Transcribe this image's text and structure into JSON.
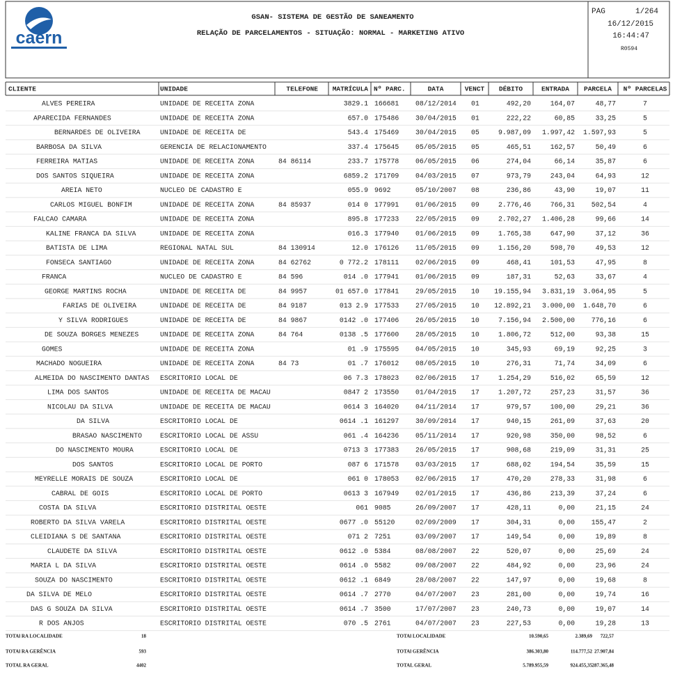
{
  "header": {
    "logo": "caern",
    "system": "GSAN- SISTEMA DE GESTÃO DE SANEAMENTO",
    "report": "RELAÇÃO DE PARCELAMENTOS - SITUAÇÃO: NORMAL - MARKETING ATIVO",
    "page_label": "PAG",
    "page": "1/264",
    "date": "16/12/2015",
    "time": "16:44:47",
    "code": "R0594"
  },
  "table": {
    "columns": [
      "CLIENTE",
      "UNIDADE",
      "TELEFONE",
      "MATRÍCULA",
      "Nº PARC.",
      "DATA",
      "VENCT",
      "DÉBITO",
      "ENTRADA",
      "PARCELA",
      "Nº PARCELAS"
    ],
    "rows": [
      [
        "ALVES PEREIRA",
        "UNIDADE DE RECEITA ZONA",
        null,
        "3829.1",
        "166681",
        "08/12/2014",
        "01",
        "492,20",
        "164,07",
        "48,77",
        "7"
      ],
      [
        "APARECIDA FERNANDES",
        "UNIDADE DE RECEITA ZONA",
        null,
        "657.0",
        "175486",
        "30/04/2015",
        "01",
        "222,22",
        "60,85",
        "33,25",
        "5"
      ],
      [
        "BERNARDES DE OLIVEIRA",
        "UNIDADE DE RECEITA DE",
        null,
        "543.4",
        "175469",
        "30/04/2015",
        "05",
        "9.987,09",
        "1.997,42",
        "1.597,93",
        "5"
      ],
      [
        "BARBOSA DA SILVA",
        "GERENCIA DE RELACIONAMENTO",
        null,
        "337.4",
        "175645",
        "05/05/2015",
        "05",
        "465,51",
        "162,57",
        "50,49",
        "6"
      ],
      [
        "FERREIRA MATIAS",
        "UNIDADE DE RECEITA ZONA",
        "84    86114",
        "233.7",
        "175778",
        "06/05/2015",
        "06",
        "274,04",
        "66,14",
        "35,87",
        "6"
      ],
      [
        "DOS SANTOS SIQUEIRA",
        "UNIDADE DE RECEITA ZONA",
        null,
        "6859.2",
        "171709",
        "04/03/2015",
        "07",
        "973,79",
        "243,04",
        "64,93",
        "12"
      ],
      [
        "AREIA NETO",
        "NUCLEO DE CADASTRO E",
        null,
        "055.9",
        "9692",
        "05/10/2007",
        "08",
        "236,86",
        "43,90",
        "19,07",
        "11"
      ],
      [
        "CARLOS MIGUEL BONFIM",
        "UNIDADE DE RECEITA ZONA",
        "84    85937",
        "014    0",
        "177991",
        "01/06/2015",
        "09",
        "2.776,46",
        "766,31",
        "502,54",
        "4"
      ],
      [
        "FALCAO CAMARA",
        "UNIDADE DE RECEITA ZONA",
        null,
        "895.8",
        "177233",
        "22/05/2015",
        "09",
        "2.702,27",
        "1.406,28",
        "99,66",
        "14"
      ],
      [
        "KALINE FRANCA DA SILVA",
        "UNIDADE DE RECEITA ZONA",
        null,
        "016.3",
        "177940",
        "01/06/2015",
        "09",
        "1.765,38",
        "647,90",
        "37,12",
        "36"
      ],
      [
        "BATISTA DE LIMA",
        "REGIONAL NATAL SUL",
        "84  130914",
        "12.0",
        "176126",
        "11/05/2015",
        "09",
        "1.156,20",
        "598,70",
        "49,53",
        "12"
      ],
      [
        "FONSECA SANTIAGO",
        "UNIDADE DE RECEITA ZONA",
        "84   62762",
        "0   772.2",
        "178111",
        "02/06/2015",
        "09",
        "468,41",
        "101,53",
        "47,95",
        "8"
      ],
      [
        "FRANCA",
        "NUCLEO DE CADASTRO E",
        "84    596",
        "014    .0",
        "177941",
        "01/06/2015",
        "09",
        "187,31",
        "52,63",
        "33,67",
        "4"
      ],
      [
        "GEORGE MARTINS ROCHA",
        "UNIDADE DE RECEITA DE",
        "84    9957",
        "01  657.0",
        "177841",
        "29/05/2015",
        "10",
        "19.155,94",
        "3.831,19",
        "3.064,95",
        "5"
      ],
      [
        "FARIAS DE OLIVEIRA",
        "UNIDADE DE RECEITA DE",
        "84    9187",
        "013   2.9",
        "177533",
        "27/05/2015",
        "10",
        "12.892,21",
        "3.000,00",
        "1.648,70",
        "6"
      ],
      [
        "Y SILVA RODRIGUES",
        "UNIDADE DE RECEITA DE",
        "84    9867",
        "0142   .0",
        "177406",
        "26/05/2015",
        "10",
        "7.156,94",
        "2.500,00",
        "776,16",
        "6"
      ],
      [
        "DE SOUZA BORGES MENEZES",
        "UNIDADE DE RECEITA ZONA",
        "84     764",
        "0138   .5",
        "177600",
        "28/05/2015",
        "10",
        "1.806,72",
        "512,00",
        "93,38",
        "15"
      ],
      [
        "GOMES",
        "UNIDADE DE RECEITA ZONA",
        null,
        "01     .9",
        "175595",
        "04/05/2015",
        "10",
        "345,93",
        "69,19",
        "92,25",
        "3"
      ],
      [
        "MACHADO NOGUEIRA",
        "UNIDADE DE RECEITA ZONA",
        "84      73",
        "01     .7",
        "176012",
        "08/05/2015",
        "10",
        "276,31",
        "71,74",
        "34,09",
        "6"
      ],
      [
        "ALMEIDA DO NASCIMENTO DANTAS",
        "ESCRITORIO LOCAL DE",
        null,
        "06    7.3",
        "178023",
        "02/06/2015",
        "17",
        "1.254,29",
        "516,02",
        "65,59",
        "12"
      ],
      [
        "LIMA DOS SANTOS",
        "UNIDADE DE RECEITA DE MACAU",
        null,
        "0847    2",
        "173550",
        "01/04/2015",
        "17",
        "1.207,72",
        "257,23",
        "31,57",
        "36"
      ],
      [
        "NICOLAU DA SILVA",
        "UNIDADE DE RECEITA DE MACAU",
        null,
        "0614    3",
        "164020",
        "04/11/2014",
        "17",
        "979,57",
        "100,00",
        "29,21",
        "36"
      ],
      [
        "DA SILVA",
        "ESCRITORIO LOCAL DE",
        null,
        "0614   .1",
        "161297",
        "30/09/2014",
        "17",
        "940,15",
        "261,09",
        "37,63",
        "20"
      ],
      [
        "BRASAO NASCIMENTO",
        "ESCRITORIO LOCAL DE ASSU",
        null,
        "061    .4",
        "164236",
        "05/11/2014",
        "17",
        "920,98",
        "350,00",
        "98,52",
        "6"
      ],
      [
        "DO NASCIMENTO MOURA",
        "ESCRITORIO LOCAL DE",
        null,
        "0713    3",
        "177383",
        "26/05/2015",
        "17",
        "908,68",
        "219,09",
        "31,31",
        "25"
      ],
      [
        "DOS SANTOS",
        "ESCRITORIO LOCAL DE PORTO",
        null,
        "087     6",
        "171578",
        "03/03/2015",
        "17",
        "688,02",
        "194,54",
        "35,59",
        "15"
      ],
      [
        "MEYRELLE MORAIS DE SOUZA",
        "ESCRITORIO LOCAL DE",
        null,
        "061     0",
        "178053",
        "02/06/2015",
        "17",
        "470,20",
        "278,33",
        "31,98",
        "6"
      ],
      [
        "CABRAL DE GOIS",
        "ESCRITORIO LOCAL DE PORTO",
        null,
        "0613    3",
        "167949",
        "02/01/2015",
        "17",
        "436,86",
        "213,39",
        "37,24",
        "6"
      ],
      [
        "COSTA DA SILVA",
        "ESCRITORIO DISTRITAL OESTE",
        null,
        "061",
        "9085",
        "26/09/2007",
        "17",
        "428,11",
        "0,00",
        "21,15",
        "24"
      ],
      [
        "ROBERTO DA SILVA VARELA",
        "ESCRITORIO DISTRITAL OESTE",
        null,
        "0677   .0",
        "55120",
        "02/09/2009",
        "17",
        "304,31",
        "0,00",
        "155,47",
        "2"
      ],
      [
        "CLEIDIANA S DE SANTANA",
        "ESCRITORIO DISTRITAL OESTE",
        null,
        "071     2",
        "7251",
        "03/09/2007",
        "17",
        "149,54",
        "0,00",
        "19,89",
        "8"
      ],
      [
        "CLAUDETE DA SILVA",
        "ESCRITORIO DISTRITAL OESTE",
        null,
        "0612   .0",
        "5384",
        "08/08/2007",
        "22",
        "520,07",
        "0,00",
        "25,69",
        "24"
      ],
      [
        "MARIA L DA SILVA",
        "ESCRITORIO DISTRITAL OESTE",
        null,
        "0614   .0",
        "5582",
        "09/08/2007",
        "22",
        "484,92",
        "0,00",
        "23,96",
        "24"
      ],
      [
        "SOUZA DO NASCIMENTO",
        "ESCRITORIO DISTRITAL OESTE",
        null,
        "0612   .1",
        "6849",
        "28/08/2007",
        "22",
        "147,97",
        "0,00",
        "19,68",
        "8"
      ],
      [
        "DA SILVA DE MELO",
        "ESCRITORIO DISTRITAL OESTE",
        null,
        "0614   .7",
        "2770",
        "04/07/2007",
        "23",
        "281,00",
        "0,00",
        "19,74",
        "16"
      ],
      [
        "DAS G SOUZA DA SILVA",
        "ESCRITORIO DISTRITAL OESTE",
        null,
        "0614   .7",
        "3500",
        "17/07/2007",
        "23",
        "240,73",
        "0,00",
        "19,07",
        "14"
      ],
      [
        "R DOS ANJOS",
        "ESCRITORIO DISTRITAL OESTE",
        null,
        "070    .5",
        "2761",
        "04/07/2007",
        "23",
        "227,53",
        "0,00",
        "19,28",
        "13"
      ]
    ]
  },
  "totals": [
    {
      "label": "TOTAl RA LOCALIDADE",
      "count": "18",
      "label2": "TOTAl LOCALIDADE",
      "debito": "10.590,65",
      "entrada": "2.389,69",
      "parcela": "722,57"
    },
    {
      "label": "TOTAl RA GERÊNCIA",
      "count": "593",
      "label2": "TOTAl GERÊNCIA",
      "debito": "386.303,80",
      "entrada": "114.777,52",
      "parcela": "27.907,84"
    },
    {
      "label": "TOTAL RA GERAL",
      "count": "4402",
      "label2": "TOTAL GERAL",
      "debito": "5.789.955,59",
      "entrada": "924.455,35",
      "parcela": "287.365,48"
    }
  ]
}
